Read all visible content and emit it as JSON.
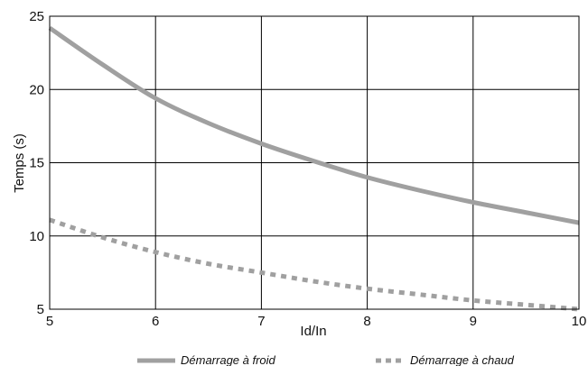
{
  "chart_data": {
    "type": "line",
    "title": "",
    "xlabel": "Id/In",
    "ylabel": "Temps (s)",
    "xlim": [
      5,
      10
    ],
    "ylim": [
      5,
      25
    ],
    "x_ticks": [
      "5",
      "6",
      "7",
      "8",
      "9",
      "10"
    ],
    "y_ticks": [
      "5",
      "10",
      "15",
      "20",
      "25"
    ],
    "grid": true,
    "legend_position": "bottom",
    "x": [
      5,
      5.5,
      6,
      6.5,
      7,
      7.5,
      8,
      8.5,
      9,
      9.5,
      10
    ],
    "series": [
      {
        "name": "Démarrage à froid",
        "style": "solid",
        "color": "#a0a0a0",
        "values": [
          24.2,
          21.7,
          19.4,
          17.7,
          16.3,
          15.1,
          14.0,
          13.1,
          12.3,
          11.6,
          10.9
        ]
      },
      {
        "name": "Démarrage à chaud",
        "style": "dotted",
        "color": "#a0a0a0",
        "values": [
          11.1,
          9.9,
          8.9,
          8.1,
          7.5,
          6.9,
          6.4,
          6.0,
          5.6,
          5.3,
          5.0
        ]
      }
    ]
  }
}
